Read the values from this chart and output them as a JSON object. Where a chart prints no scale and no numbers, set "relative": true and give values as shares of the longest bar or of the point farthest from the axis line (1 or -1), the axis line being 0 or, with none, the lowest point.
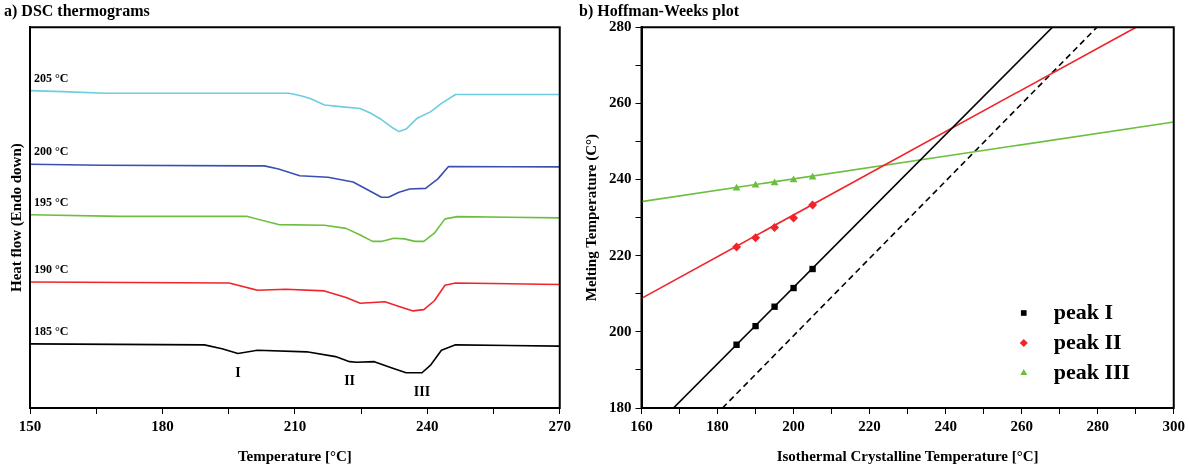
{
  "chart_data": [
    {
      "type": "line",
      "title": "a) DSC thermograms",
      "xlabel": "Temperature [°C]",
      "ylabel": "Heat flow (Endo down)",
      "relative": true,
      "marker": "none",
      "xlim": [
        150,
        270
      ],
      "xticks": [
        150,
        {
          "value": 165,
          "label": null
        },
        180,
        {
          "value": 195,
          "label": null
        },
        210,
        {
          "value": 225,
          "label": null
        },
        240,
        {
          "value": 255,
          "label": null
        },
        270
      ],
      "series": [
        {
          "name": "205 °C",
          "color": "#6ccde0",
          "x": [
            150,
            157.5,
            167.1,
            198.3,
            208.7,
            211.1,
            213.5,
            216.7,
            220.8,
            224.8,
            227.2,
            229.6,
            232.0,
            233.6,
            235.2,
            237.6,
            240.8,
            243.2,
            246.4,
            270
          ],
          "values": [
            1.0,
            0.997,
            0.992,
            0.992,
            0.992,
            0.985,
            0.975,
            0.955,
            0.949,
            0.944,
            0.929,
            0.909,
            0.884,
            0.871,
            0.879,
            0.912,
            0.934,
            0.96,
            0.988,
            0.988
          ]
        },
        {
          "name": "200 °C",
          "color": "#3a4fb0",
          "x": [
            150,
            166.3,
            203.1,
            206.3,
            211.1,
            217.5,
            223.2,
            227.2,
            229.6,
            231.2,
            233.6,
            236.0,
            239.6,
            242.4,
            244.8,
            270
          ],
          "values": [
            0.768,
            0.765,
            0.763,
            0.753,
            0.732,
            0.727,
            0.712,
            0.682,
            0.664,
            0.664,
            0.68,
            0.69,
            0.692,
            0.722,
            0.761,
            0.76
          ]
        },
        {
          "name": "195 °C",
          "color": "#6cbf3e",
          "x": [
            150,
            170.3,
            199.1,
            206.3,
            216.7,
            221.6,
            224.8,
            227.6,
            229.6,
            232.4,
            234.8,
            237.2,
            239.2,
            241.6,
            244.0,
            246.8,
            270
          ],
          "values": [
            0.609,
            0.604,
            0.604,
            0.578,
            0.576,
            0.566,
            0.545,
            0.525,
            0.525,
            0.535,
            0.533,
            0.525,
            0.525,
            0.551,
            0.596,
            0.603,
            0.599
          ]
        },
        {
          "name": "190 °C",
          "color": "#f0242a",
          "x": [
            150,
            195.1,
            201.5,
            207.9,
            216.7,
            221.6,
            224.8,
            230.4,
            233.6,
            236.8,
            239.2,
            241.6,
            244.0,
            246.4,
            270
          ],
          "values": [
            0.397,
            0.394,
            0.371,
            0.374,
            0.369,
            0.348,
            0.33,
            0.335,
            0.32,
            0.306,
            0.31,
            0.338,
            0.387,
            0.394,
            0.389
          ]
        },
        {
          "name": "185 °C",
          "color": "#000000",
          "x": [
            150,
            189.5,
            193.5,
            197.1,
            201.5,
            212.7,
            219.2,
            222.4,
            224.0,
            228.0,
            232.0,
            235.2,
            238.8,
            240.8,
            243.2,
            246.4,
            270
          ],
          "values": [
            0.202,
            0.199,
            0.187,
            0.172,
            0.182,
            0.177,
            0.162,
            0.146,
            0.144,
            0.146,
            0.126,
            0.111,
            0.111,
            0.136,
            0.182,
            0.199,
            0.195
          ]
        }
      ],
      "annotations": [
        {
          "text": "I",
          "x": 197.1,
          "y": 0.172
        },
        {
          "text": "II",
          "x": 222.4,
          "y": 0.146
        },
        {
          "text": "III",
          "x": 238.8,
          "y": 0.111
        }
      ]
    },
    {
      "type": "scatter",
      "title": "b) Hoffman-Weeks plot",
      "xlabel": "Isothermal Crystalline Temperature [°C]",
      "ylabel": "Melting Temperature (C°)",
      "legend": "bottom right",
      "xlim": [
        160,
        300
      ],
      "ylim": [
        180,
        280
      ],
      "xticks": [
        160,
        {
          "value": 170,
          "label": null
        },
        180,
        {
          "value": 190,
          "label": null
        },
        200,
        {
          "value": 210,
          "label": null
        },
        220,
        {
          "value": 230,
          "label": null
        },
        240,
        {
          "value": 250,
          "label": null
        },
        260,
        {
          "value": 270,
          "label": null
        },
        280,
        {
          "value": 290,
          "label": null
        },
        300
      ],
      "yticks": [
        180,
        {
          "value": 190,
          "label": null
        },
        200,
        {
          "value": 210,
          "label": null
        },
        220,
        {
          "value": 230,
          "label": null
        },
        240,
        {
          "value": 250,
          "label": null
        },
        260,
        {
          "value": 270,
          "label": null
        },
        280
      ],
      "series": [
        {
          "type": "line",
          "color": "#000000",
          "line_style": "solid",
          "x": [
            168.4,
            268.1
          ],
          "values": [
            180,
            280
          ]
        },
        {
          "type": "line",
          "color": "#f0242a",
          "line_style": "solid",
          "x": [
            160,
            290.1
          ],
          "values": [
            208.8,
            280
          ]
        },
        {
          "type": "line",
          "color": "#6cbf3e",
          "line_style": "solid",
          "x": [
            160,
            300
          ],
          "values": [
            234.2,
            255.1
          ]
        },
        {
          "type": "line",
          "color": "#000000",
          "line_style": "dashed",
          "x": [
            181.3,
            279.8
          ],
          "values": [
            180,
            280
          ]
        },
        {
          "name": "peak I",
          "color": "#000000",
          "marker": "square",
          "x": [
            185,
            190,
            195,
            200,
            205
          ],
          "values": [
            196.6,
            201.5,
            206.6,
            211.5,
            216.5
          ]
        },
        {
          "name": "peak II",
          "color": "#f0242a",
          "marker": "diamond",
          "x": [
            185,
            190,
            195,
            200,
            205
          ],
          "values": [
            222.3,
            224.7,
            227.4,
            229.9,
            233.3
          ]
        },
        {
          "name": "peak III",
          "color": "#6cbf3e",
          "marker": "triangle",
          "x": [
            185,
            190,
            195,
            200,
            205
          ],
          "values": [
            237.7,
            238.5,
            239.1,
            239.9,
            240.6
          ]
        }
      ]
    }
  ]
}
